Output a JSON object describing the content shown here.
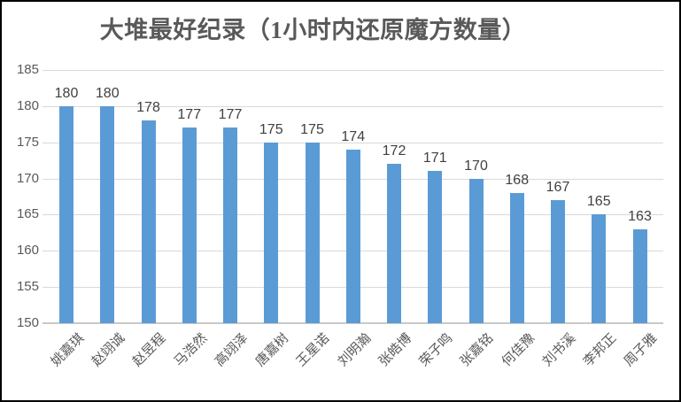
{
  "chart_data": {
    "type": "bar",
    "title": "大堆最好纪录（1小时内还原魔方数量）",
    "categories": [
      "姚嘉琪",
      "赵翊诚",
      "赵昱程",
      "马浩然",
      "高翊泽",
      "唐嘉树",
      "王星诺",
      "刘明瀚",
      "张皓博",
      "荣子鸣",
      "张嘉铭",
      "何佳豫",
      "刘书溪",
      "李邦正",
      "周子雅"
    ],
    "values": [
      180,
      180,
      178,
      177,
      177,
      175,
      175,
      174,
      172,
      171,
      170,
      168,
      167,
      165,
      163
    ],
    "xlabel": "",
    "ylabel": "",
    "ylim": [
      150,
      185
    ],
    "yticks": [
      150,
      155,
      160,
      165,
      170,
      175,
      180,
      185
    ],
    "data_labels": true,
    "grid": true,
    "legend": false,
    "category_label_rotation_deg": -45,
    "colors": {
      "bar": "#5B9BD5",
      "gridline": "#D9D9D9",
      "axis_line": "#C9C9C9",
      "title_text": "#595959",
      "tick_label_text": "#595959",
      "data_label_text": "#404040",
      "category_label_text": "#595959",
      "frame_border": "#000000",
      "background": "#FFFFFF"
    }
  }
}
